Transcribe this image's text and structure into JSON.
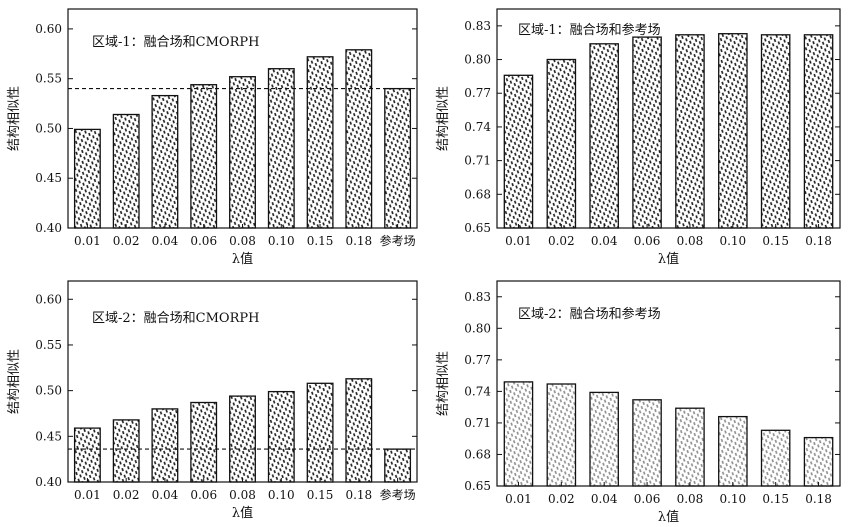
{
  "chart_data": [
    {
      "type": "bar",
      "title": "区域-1：融合场和CMORPH",
      "xlabel": "λ值",
      "ylabel": "结构相似性",
      "categories": [
        "0.01",
        "0.02",
        "0.04",
        "0.06",
        "0.08",
        "0.10",
        "0.15",
        "0.18",
        "参考场"
      ],
      "values": [
        0.499,
        0.514,
        0.533,
        0.544,
        0.552,
        0.56,
        0.572,
        0.579,
        0.54
      ],
      "ylim": [
        0.4,
        0.62
      ],
      "yticks": [
        "0.40",
        "0.45",
        "0.50",
        "0.55",
        "0.60"
      ],
      "reference_line": 0.54,
      "pattern": "dark"
    },
    {
      "type": "bar",
      "title": "区域-1：融合场和参考场",
      "xlabel": "λ值",
      "ylabel": "结构相似性",
      "categories": [
        "0.01",
        "0.02",
        "0.04",
        "0.06",
        "0.08",
        "0.10",
        "0.15",
        "0.18"
      ],
      "values": [
        0.786,
        0.8,
        0.814,
        0.82,
        0.822,
        0.823,
        0.822,
        0.822
      ],
      "ylim": [
        0.65,
        0.845
      ],
      "yticks": [
        "0.65",
        "0.68",
        "0.71",
        "0.74",
        "0.77",
        "0.80",
        "0.83"
      ],
      "pattern": "dark"
    },
    {
      "type": "bar",
      "title": "区域-2：融合场和CMORPH",
      "xlabel": "λ值",
      "ylabel": "结构相似性",
      "categories": [
        "0.01",
        "0.02",
        "0.04",
        "0.06",
        "0.08",
        "0.10",
        "0.15",
        "0.18",
        "参考场"
      ],
      "values": [
        0.459,
        0.468,
        0.48,
        0.487,
        0.494,
        0.499,
        0.508,
        0.513,
        0.436
      ],
      "ylim": [
        0.4,
        0.62
      ],
      "yticks": [
        "0.40",
        "0.45",
        "0.50",
        "0.55",
        "0.60"
      ],
      "reference_line": 0.436,
      "pattern": "dark"
    },
    {
      "type": "bar",
      "title": "区域-2：融合场和参考场",
      "xlabel": "λ值",
      "ylabel": "结构相似性",
      "categories": [
        "0.01",
        "0.02",
        "0.04",
        "0.06",
        "0.08",
        "0.10",
        "0.15",
        "0.18"
      ],
      "values": [
        0.749,
        0.747,
        0.739,
        0.732,
        0.724,
        0.716,
        0.703,
        0.696
      ],
      "ylim": [
        0.65,
        0.845
      ],
      "yticks": [
        "0.65",
        "0.68",
        "0.71",
        "0.74",
        "0.77",
        "0.80",
        "0.83"
      ],
      "pattern": "light"
    }
  ]
}
